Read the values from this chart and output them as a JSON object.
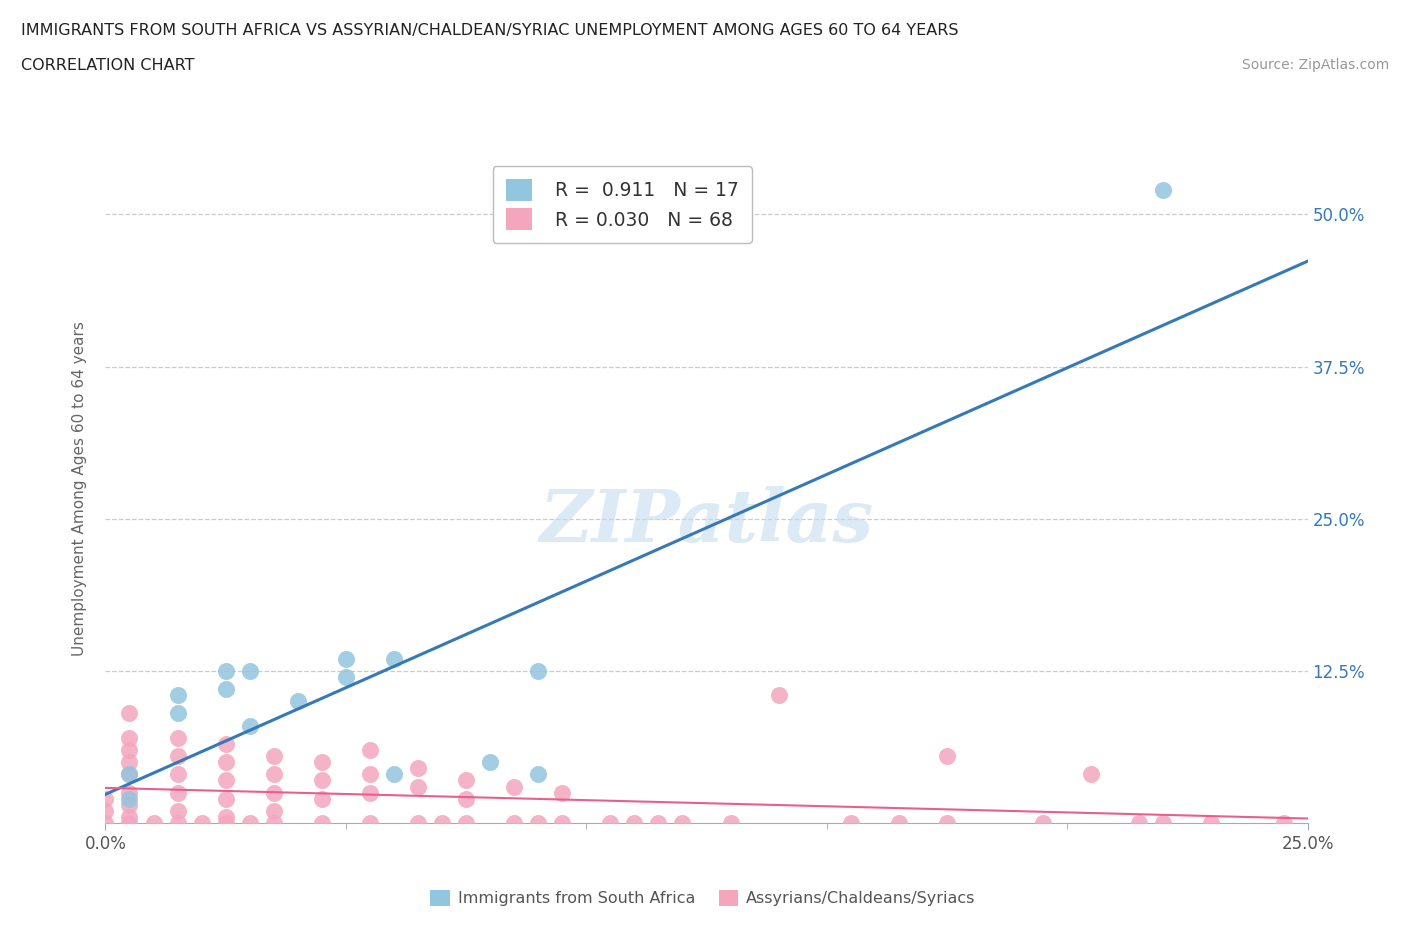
{
  "title_line1": "IMMIGRANTS FROM SOUTH AFRICA VS ASSYRIAN/CHALDEAN/SYRIAC UNEMPLOYMENT AMONG AGES 60 TO 64 YEARS",
  "title_line2": "CORRELATION CHART",
  "source_text": "Source: ZipAtlas.com",
  "ylabel": "Unemployment Among Ages 60 to 64 years",
  "xlim": [
    0.0,
    0.25
  ],
  "ylim": [
    0.0,
    0.55
  ],
  "xticks": [
    0.0,
    0.25
  ],
  "xtick_labels": [
    "0.0%",
    "25.0%"
  ],
  "yticks": [
    0.125,
    0.25,
    0.375,
    0.5
  ],
  "ytick_right_labels": [
    "12.5%",
    "25.0%",
    "37.5%",
    "50.0%"
  ],
  "watermark_text": "ZIPatlas",
  "blue_color": "#92C5DE",
  "pink_color": "#F4A6BE",
  "blue_line_color": "#3579B8",
  "pink_line_color": "#E8608A",
  "grid_color": "#CCCCCC",
  "blue_scatter": [
    [
      0.005,
      0.04
    ],
    [
      0.005,
      0.02
    ],
    [
      0.015,
      0.105
    ],
    [
      0.015,
      0.09
    ],
    [
      0.025,
      0.125
    ],
    [
      0.025,
      0.11
    ],
    [
      0.03,
      0.125
    ],
    [
      0.03,
      0.08
    ],
    [
      0.04,
      0.1
    ],
    [
      0.05,
      0.135
    ],
    [
      0.05,
      0.12
    ],
    [
      0.06,
      0.135
    ],
    [
      0.06,
      0.04
    ],
    [
      0.08,
      0.05
    ],
    [
      0.09,
      0.125
    ],
    [
      0.09,
      0.04
    ],
    [
      0.22,
      0.52
    ]
  ],
  "pink_scatter": [
    [
      0.005,
      0.09
    ],
    [
      0.005,
      0.07
    ],
    [
      0.005,
      0.06
    ],
    [
      0.005,
      0.05
    ],
    [
      0.005,
      0.04
    ],
    [
      0.005,
      0.025
    ],
    [
      0.005,
      0.015
    ],
    [
      0.005,
      0.005
    ],
    [
      0.005,
      0.0
    ],
    [
      0.015,
      0.07
    ],
    [
      0.015,
      0.055
    ],
    [
      0.015,
      0.04
    ],
    [
      0.015,
      0.025
    ],
    [
      0.015,
      0.01
    ],
    [
      0.015,
      0.0
    ],
    [
      0.025,
      0.065
    ],
    [
      0.025,
      0.05
    ],
    [
      0.025,
      0.035
    ],
    [
      0.025,
      0.02
    ],
    [
      0.025,
      0.005
    ],
    [
      0.025,
      0.0
    ],
    [
      0.035,
      0.055
    ],
    [
      0.035,
      0.04
    ],
    [
      0.035,
      0.025
    ],
    [
      0.035,
      0.01
    ],
    [
      0.035,
      0.0
    ],
    [
      0.045,
      0.05
    ],
    [
      0.045,
      0.035
    ],
    [
      0.045,
      0.02
    ],
    [
      0.045,
      0.0
    ],
    [
      0.055,
      0.06
    ],
    [
      0.055,
      0.04
    ],
    [
      0.055,
      0.025
    ],
    [
      0.055,
      0.0
    ],
    [
      0.065,
      0.045
    ],
    [
      0.065,
      0.03
    ],
    [
      0.065,
      0.0
    ],
    [
      0.075,
      0.035
    ],
    [
      0.075,
      0.02
    ],
    [
      0.075,
      0.0
    ],
    [
      0.085,
      0.03
    ],
    [
      0.085,
      0.0
    ],
    [
      0.095,
      0.025
    ],
    [
      0.095,
      0.0
    ],
    [
      0.105,
      0.0
    ],
    [
      0.115,
      0.0
    ],
    [
      0.12,
      0.0
    ],
    [
      0.14,
      0.105
    ],
    [
      0.155,
      0.0
    ],
    [
      0.165,
      0.0
    ],
    [
      0.175,
      0.055
    ],
    [
      0.195,
      0.0
    ],
    [
      0.205,
      0.04
    ],
    [
      0.215,
      0.0
    ],
    [
      0.22,
      0.0
    ],
    [
      0.23,
      0.0
    ],
    [
      0.245,
      0.0
    ],
    [
      0.175,
      0.0
    ],
    [
      0.13,
      0.0
    ],
    [
      0.11,
      0.0
    ],
    [
      0.09,
      0.0
    ],
    [
      0.07,
      0.0
    ],
    [
      0.03,
      0.0
    ],
    [
      0.02,
      0.0
    ],
    [
      0.01,
      0.0
    ],
    [
      0.0,
      0.0
    ],
    [
      0.0,
      0.01
    ],
    [
      0.0,
      0.02
    ]
  ]
}
